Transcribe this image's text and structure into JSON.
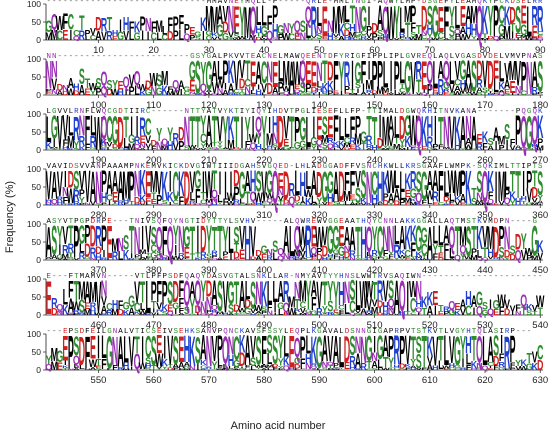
{
  "chart_data": {
    "type": "sequence-logo",
    "xlabel": "Amino acid number",
    "ylabel": "Frequency (%)",
    "ylim": [
      0,
      100
    ],
    "yticks": [
      0,
      50,
      100
    ],
    "colors": {
      "hydrophobic": "#000000",
      "polar": "#2e8b2e",
      "basic": "#1f3fcf",
      "acidic": "#d11f1f",
      "amide": "#9a2fb5"
    },
    "panels": [
      {
        "start": 1,
        "end": 90,
        "ticks": [
          10,
          20,
          30,
          40,
          50,
          60,
          70,
          80,
          90
        ],
        "consensus": "-----------------------------MMAVNEYMQLL-P-----QRLE-MMLTNGI-AQWYLMP-DSGEFYLEAMQKYPCKDSELRRQDGAE-"
      },
      {
        "start": 91,
        "end": 180,
        "ticks": [
          100,
          110,
          120,
          130,
          140,
          150,
          160,
          170,
          180
        ],
        "consensus": "NN------------------------GSYGALPKVVTEACNELMAWQEENTDFYRIGFIPPLIPLGVREQLAQLVGASDVDELVMVPNASTG"
      },
      {
        "start": 181,
        "end": 270,
        "ticks": [
          190,
          200,
          210,
          220,
          230,
          240,
          250,
          260,
          270
        ],
        "consensus": "LGVVLRNFLWQCGDTIIRC------NTTYATVYKTIYIQYIHDVTPGLIESEFLLFP-TTIMALDGWQKHITNVKANA-------PQGQKI"
      },
      {
        "start": 271,
        "end": 360,
        "ticks": [
          280,
          290,
          300,
          310,
          320,
          330,
          340,
          350,
          360
        ],
        "consensus": "VAVIDSVVANPAAAMPNKEMVKICKDVGIWTIIIDGAHSVGQED-LHLADGGADFFVSNCHKWLLKRSGAAFLWMPK-SQKIMLTTIPTS"
      },
      {
        "start": 361,
        "end": 450,
        "ticks": [
          370,
          380,
          390,
          400,
          410,
          420,
          430,
          440,
          450
        ],
        "consensus": "ASYVTPGPDRPE---TNIVSQFQYNGTIDYTTYLSVHV-----ALQWREWVGGEAATHQYCNNLAKKGGALLAQTMSTKVMDPN----G"
      },
      {
        "start": 451,
        "end": 540,
        "ticks": [
          460,
          470,
          480,
          490,
          500,
          510,
          520,
          530,
          540
        ],
        "consensus": "E---FTMAMVN-----VTLPFPSDFQAQYDASVGTALSNKLLAR-NMYAVTYYHNSLWWTRVSAQIWN-----------------------"
      },
      {
        "start": 541,
        "end": 630,
        "ticks": [
          550,
          560,
          570,
          580,
          590,
          600,
          610,
          620,
          630
        ],
        "consensus": "---EPSDFEILGNALVTICSEIVSEHKSANVPQNCKAVSFSSYLEQPLKGAVALDSNNGIGAPRPVTSTKVTLVGYHTQLASIRP---"
      }
    ]
  }
}
